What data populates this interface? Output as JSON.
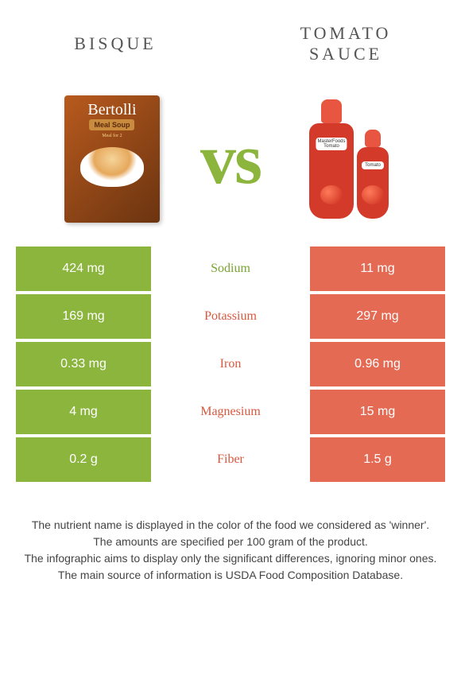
{
  "header": {
    "left_title": "BISQUE",
    "right_title_line1": "TOMATO",
    "right_title_line2": "SAUCE"
  },
  "vs_text": "vs",
  "products": {
    "bisque": {
      "brand": "Bertolli",
      "label": "Meal Soup",
      "sub": "Meal for 2"
    },
    "sauce": {
      "label_line1": "MasterFoods",
      "label_line2": "Tomato"
    }
  },
  "colors": {
    "left_bg": "#8bb53d",
    "right_bg": "#e56a54",
    "left_text": "#7aa332",
    "right_text": "#d8583f",
    "vs_color": "#8bb53d"
  },
  "nutrients": [
    {
      "name": "Sodium",
      "left": "424 mg",
      "right": "11 mg",
      "winner": "left"
    },
    {
      "name": "Potassium",
      "left": "169 mg",
      "right": "297 mg",
      "winner": "right"
    },
    {
      "name": "Iron",
      "left": "0.33 mg",
      "right": "0.96 mg",
      "winner": "right"
    },
    {
      "name": "Magnesium",
      "left": "4 mg",
      "right": "15 mg",
      "winner": "right"
    },
    {
      "name": "Fiber",
      "left": "0.2 g",
      "right": "1.5 g",
      "winner": "right"
    }
  ],
  "footer": {
    "line1": "The nutrient name is displayed in the color of the food we considered as 'winner'.",
    "line2": "The amounts are specified per 100 gram of the product.",
    "line3": "The infographic aims to display only the significant differences, ignoring minor ones.",
    "line4": "The main source of information is USDA Food Composition Database."
  }
}
